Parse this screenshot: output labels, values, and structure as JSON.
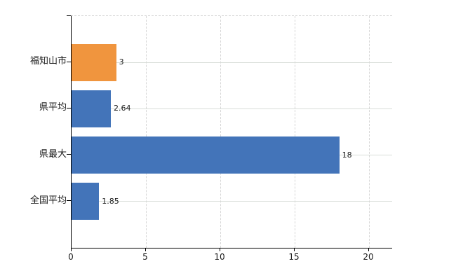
{
  "chart_data": {
    "type": "bar",
    "orientation": "horizontal",
    "title": "",
    "categories": [
      "福知山市",
      "県平均",
      "県最大",
      "全国平均"
    ],
    "values": [
      3,
      2.64,
      18,
      1.85
    ],
    "value_labels": [
      "3",
      "2.64",
      "18",
      "1.85"
    ],
    "bar_colors": [
      "#f0953e",
      "#4374b9",
      "#4374b9",
      "#4374b9"
    ],
    "x_ticks": [
      "0",
      "5",
      "10",
      "15",
      "20"
    ],
    "x_tick_values": [
      0,
      5,
      10,
      15,
      20
    ],
    "xlim": [
      0,
      21.55
    ],
    "grid": true,
    "legend_position": "none",
    "colors": {
      "highlight_bar": "#f0953e",
      "default_bar": "#4374b9",
      "axis": "#000000",
      "gridline": "#d8d8d8",
      "text": "#1a1a1a"
    }
  }
}
